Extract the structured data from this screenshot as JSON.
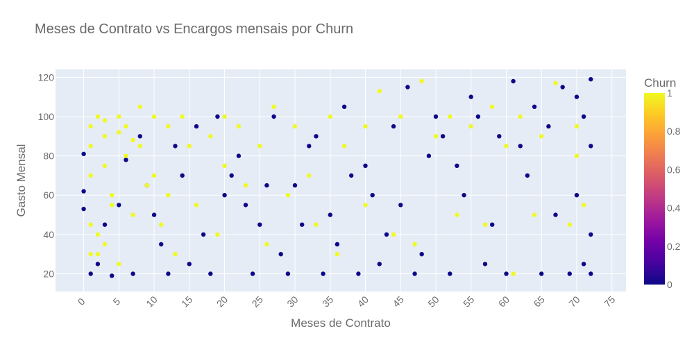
{
  "chart_data": {
    "type": "scatter",
    "title": "Meses de Contrato vs Encargos mensais por Churn",
    "xlabel": "Meses de Contrato",
    "ylabel": "Gasto Mensal",
    "xlim": [
      -4,
      77
    ],
    "ylim": [
      11,
      124
    ],
    "xticks": [
      0,
      5,
      10,
      15,
      20,
      25,
      30,
      35,
      40,
      45,
      50,
      55,
      60,
      65,
      70,
      75
    ],
    "yticks": [
      20,
      40,
      60,
      80,
      100,
      120
    ],
    "grid": true,
    "colorbar": {
      "title": "Churn",
      "range": [
        0,
        1
      ],
      "ticks": [
        0,
        0.2,
        0.4,
        0.6,
        0.8,
        1
      ],
      "colorscale": [
        "#0d0887",
        "#46039f",
        "#7201a8",
        "#9c179e",
        "#bd3786",
        "#d8576b",
        "#ed7953",
        "#fb9f3a",
        "#fdca26",
        "#f0f921"
      ]
    },
    "series": [
      {
        "churn": 0,
        "color": "#0d0887",
        "points": [
          [
            1,
            20
          ],
          [
            2,
            25
          ],
          [
            3,
            45
          ],
          [
            4,
            19
          ],
          [
            5,
            55
          ],
          [
            6,
            78
          ],
          [
            7,
            20
          ],
          [
            8,
            90
          ],
          [
            10,
            50
          ],
          [
            12,
            20
          ],
          [
            14,
            70
          ],
          [
            15,
            25
          ],
          [
            16,
            95
          ],
          [
            18,
            20
          ],
          [
            20,
            60
          ],
          [
            22,
            80
          ],
          [
            24,
            20
          ],
          [
            25,
            45
          ],
          [
            27,
            100
          ],
          [
            29,
            20
          ],
          [
            30,
            65
          ],
          [
            32,
            85
          ],
          [
            34,
            20
          ],
          [
            35,
            50
          ],
          [
            37,
            105
          ],
          [
            39,
            20
          ],
          [
            40,
            75
          ],
          [
            42,
            25
          ],
          [
            44,
            95
          ],
          [
            45,
            55
          ],
          [
            47,
            20
          ],
          [
            49,
            80
          ],
          [
            50,
            100
          ],
          [
            52,
            20
          ],
          [
            54,
            60
          ],
          [
            55,
            110
          ],
          [
            57,
            25
          ],
          [
            59,
            90
          ],
          [
            60,
            20
          ],
          [
            61,
            118
          ],
          [
            63,
            70
          ],
          [
            65,
            20
          ],
          [
            66,
            95
          ],
          [
            68,
            115
          ],
          [
            69,
            20
          ],
          [
            70,
            60
          ],
          [
            71,
            100
          ],
          [
            72,
            119
          ],
          [
            72,
            20
          ],
          [
            72,
            85
          ],
          [
            72,
            40
          ],
          [
            0,
            81
          ],
          [
            0,
            62
          ],
          [
            0,
            53
          ],
          [
            71,
            25
          ],
          [
            64,
            105
          ],
          [
            58,
            45
          ],
          [
            48,
            30
          ],
          [
            36,
            35
          ],
          [
            26,
            65
          ],
          [
            11,
            35
          ],
          [
            67,
            50
          ],
          [
            62,
            85
          ],
          [
            53,
            75
          ],
          [
            43,
            40
          ],
          [
            33,
            90
          ],
          [
            23,
            55
          ],
          [
            13,
            85
          ],
          [
            9,
            65
          ],
          [
            70,
            110
          ],
          [
            56,
            100
          ],
          [
            46,
            115
          ],
          [
            41,
            60
          ],
          [
            31,
            45
          ],
          [
            21,
            70
          ],
          [
            17,
            40
          ],
          [
            28,
            30
          ],
          [
            19,
            100
          ],
          [
            38,
            70
          ],
          [
            51,
            90
          ]
        ]
      },
      {
        "churn": 1,
        "color": "#f0f921",
        "points": [
          [
            1,
            70
          ],
          [
            1,
            85
          ],
          [
            1,
            95
          ],
          [
            2,
            100
          ],
          [
            1,
            45
          ],
          [
            2,
            30
          ],
          [
            3,
            90
          ],
          [
            3,
            75
          ],
          [
            4,
            55
          ],
          [
            5,
            100
          ],
          [
            5,
            25
          ],
          [
            6,
            95
          ],
          [
            6,
            80
          ],
          [
            8,
            105
          ],
          [
            8,
            85
          ],
          [
            10,
            100
          ],
          [
            10,
            70
          ],
          [
            12,
            95
          ],
          [
            12,
            60
          ],
          [
            14,
            100
          ],
          [
            15,
            85
          ],
          [
            18,
            90
          ],
          [
            20,
            100
          ],
          [
            20,
            75
          ],
          [
            22,
            95
          ],
          [
            25,
            85
          ],
          [
            27,
            105
          ],
          [
            30,
            95
          ],
          [
            32,
            70
          ],
          [
            35,
            100
          ],
          [
            37,
            85
          ],
          [
            40,
            95
          ],
          [
            42,
            113
          ],
          [
            45,
            100
          ],
          [
            48,
            118
          ],
          [
            50,
            90
          ],
          [
            52,
            100
          ],
          [
            55,
            95
          ],
          [
            58,
            105
          ],
          [
            60,
            85
          ],
          [
            62,
            100
          ],
          [
            65,
            90
          ],
          [
            67,
            117
          ],
          [
            70,
            95
          ],
          [
            70,
            80
          ],
          [
            3,
            35
          ],
          [
            4,
            60
          ],
          [
            7,
            50
          ],
          [
            9,
            65
          ],
          [
            11,
            45
          ],
          [
            13,
            30
          ],
          [
            16,
            55
          ],
          [
            19,
            40
          ],
          [
            23,
            65
          ],
          [
            26,
            35
          ],
          [
            29,
            60
          ],
          [
            33,
            45
          ],
          [
            36,
            30
          ],
          [
            40,
            55
          ],
          [
            44,
            40
          ],
          [
            47,
            35
          ],
          [
            53,
            50
          ],
          [
            57,
            45
          ],
          [
            61,
            20
          ],
          [
            64,
            50
          ],
          [
            69,
            45
          ],
          [
            71,
            55
          ],
          [
            2,
            40
          ],
          [
            1,
            30
          ],
          [
            3,
            98
          ],
          [
            5,
            92
          ],
          [
            7,
            88
          ]
        ]
      }
    ]
  }
}
